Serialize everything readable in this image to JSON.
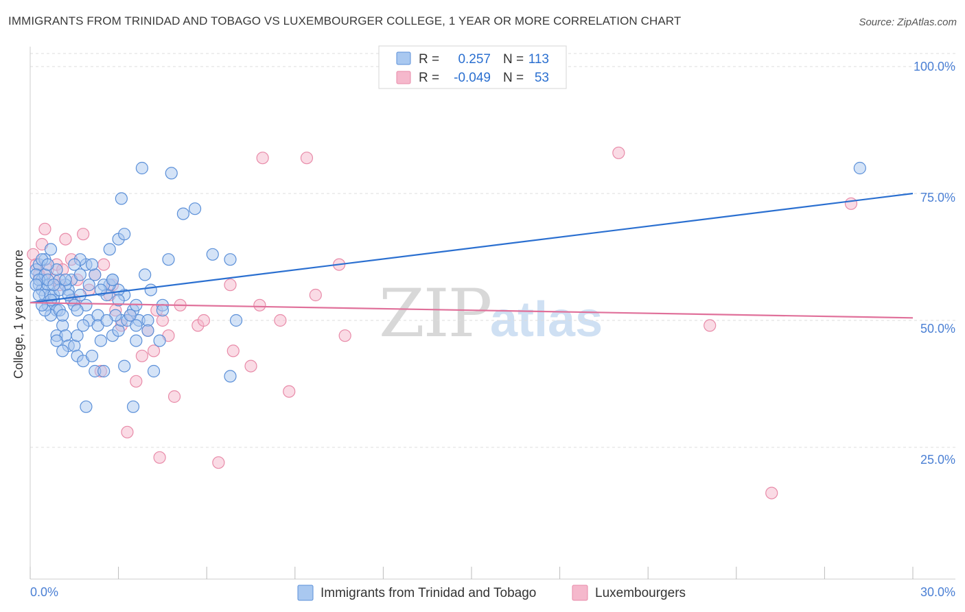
{
  "header": {
    "title": "IMMIGRANTS FROM TRINIDAD AND TOBAGO VS LUXEMBOURGER COLLEGE, 1 YEAR OR MORE CORRELATION CHART",
    "source": "Source: ZipAtlas.com"
  },
  "watermark": {
    "zip": "ZIP",
    "atlas": "atlas"
  },
  "colors": {
    "blue_fill": "#a9c8f0",
    "blue_stroke": "#5a8fd8",
    "blue_line": "#2a6fd0",
    "pink_fill": "#f5b8cc",
    "pink_stroke": "#e88aa8",
    "pink_line": "#e0709a",
    "grid": "#dddddd",
    "tick_text": "#4a7fd4"
  },
  "legend_stats": [
    {
      "r_label": "R =",
      "r_value": "0.257",
      "n_label": "N =",
      "n_value": "113"
    },
    {
      "r_label": "R =",
      "r_value": "-0.049",
      "n_label": "N =",
      "n_value": "53"
    }
  ],
  "chart_data": {
    "type": "scatter",
    "title": "IMMIGRANTS FROM TRINIDAD AND TOBAGO VS LUXEMBOURGER COLLEGE, 1 YEAR OR MORE CORRELATION CHART",
    "xlabel": "",
    "ylabel": "College, 1 year or more",
    "xlim": [
      0,
      30
    ],
    "ylim": [
      0,
      105
    ],
    "x_tick_labels": [
      "0.0%",
      "30.0%"
    ],
    "y_ticks": [
      25,
      50,
      75,
      100
    ],
    "y_tick_labels": [
      "25.0%",
      "50.0%",
      "75.0%",
      "100.0%"
    ],
    "grid": true,
    "legend_position": "bottom-center",
    "series": [
      {
        "name": "Immigrants from Trinidad and Tobago",
        "color": "blue",
        "r": 0.257,
        "n": 113,
        "trend": {
          "x": [
            0,
            30
          ],
          "y": [
            53.5,
            75
          ]
        },
        "points": [
          [
            0.2,
            60
          ],
          [
            0.3,
            61
          ],
          [
            0.2,
            59
          ],
          [
            0.4,
            58
          ],
          [
            0.3,
            57
          ],
          [
            0.5,
            59
          ],
          [
            0.4,
            56
          ],
          [
            0.6,
            57
          ],
          [
            0.7,
            55
          ],
          [
            0.5,
            55
          ],
          [
            0.8,
            54
          ],
          [
            0.6,
            53
          ],
          [
            0.9,
            52
          ],
          [
            0.7,
            51
          ],
          [
            1.0,
            52
          ],
          [
            1.1,
            49
          ],
          [
            0.9,
            47
          ],
          [
            1.2,
            47
          ],
          [
            1.3,
            45
          ],
          [
            1.1,
            44
          ],
          [
            1.5,
            45
          ],
          [
            1.6,
            43
          ],
          [
            1.8,
            42
          ],
          [
            2.1,
            43
          ],
          [
            2.2,
            40
          ],
          [
            2.5,
            40
          ],
          [
            2.8,
            47
          ],
          [
            3.0,
            48
          ],
          [
            3.1,
            50
          ],
          [
            2.9,
            51
          ],
          [
            3.3,
            50
          ],
          [
            3.5,
            52
          ],
          [
            3.6,
            53
          ],
          [
            3.2,
            55
          ],
          [
            3.0,
            56
          ],
          [
            2.7,
            57
          ],
          [
            2.5,
            57
          ],
          [
            2.8,
            58
          ],
          [
            2.2,
            59
          ],
          [
            1.9,
            61
          ],
          [
            1.7,
            62
          ],
          [
            1.5,
            61
          ],
          [
            1.4,
            58
          ],
          [
            1.3,
            56
          ],
          [
            1.2,
            57
          ],
          [
            1.0,
            58
          ],
          [
            0.9,
            60
          ],
          [
            0.7,
            64
          ],
          [
            0.5,
            62
          ],
          [
            0.3,
            58
          ],
          [
            2.7,
            64
          ],
          [
            3.0,
            66
          ],
          [
            3.2,
            67
          ],
          [
            3.1,
            74
          ],
          [
            3.8,
            80
          ],
          [
            4.8,
            79
          ],
          [
            5.2,
            71
          ],
          [
            5.6,
            72
          ],
          [
            6.2,
            63
          ],
          [
            6.8,
            62
          ],
          [
            4.7,
            62
          ],
          [
            4.5,
            53
          ],
          [
            3.9,
            59
          ],
          [
            4.1,
            56
          ],
          [
            3.7,
            50
          ],
          [
            3.4,
            51
          ],
          [
            3.6,
            49
          ],
          [
            4.0,
            50
          ],
          [
            3.2,
            41
          ],
          [
            3.5,
            33
          ],
          [
            4.2,
            40
          ],
          [
            4.4,
            46
          ],
          [
            4.5,
            52
          ],
          [
            1.9,
            33
          ],
          [
            2.6,
            55
          ],
          [
            2.4,
            56
          ],
          [
            2.0,
            50
          ],
          [
            1.8,
            49
          ],
          [
            1.6,
            47
          ],
          [
            2.3,
            51
          ],
          [
            6.8,
            39
          ],
          [
            7.0,
            50
          ],
          [
            28.2,
            80
          ],
          [
            0.4,
            62
          ],
          [
            0.6,
            61
          ],
          [
            0.8,
            55
          ],
          [
            1.0,
            56
          ],
          [
            1.4,
            54
          ],
          [
            1.9,
            53
          ],
          [
            2.0,
            57
          ],
          [
            2.3,
            49
          ],
          [
            1.7,
            59
          ],
          [
            1.5,
            53
          ],
          [
            0.2,
            57
          ],
          [
            0.3,
            55
          ],
          [
            0.6,
            58
          ],
          [
            0.7,
            54
          ],
          [
            1.1,
            51
          ],
          [
            1.3,
            55
          ],
          [
            2.1,
            61
          ],
          [
            2.6,
            50
          ],
          [
            2.8,
            58
          ],
          [
            3.0,
            54
          ],
          [
            0.5,
            52
          ],
          [
            0.9,
            46
          ],
          [
            1.6,
            52
          ],
          [
            2.4,
            46
          ],
          [
            4.0,
            48
          ],
          [
            3.6,
            46
          ],
          [
            0.8,
            57
          ],
          [
            1.2,
            58
          ],
          [
            1.7,
            55
          ],
          [
            0.4,
            53
          ]
        ]
      },
      {
        "name": "Luxembourgers",
        "color": "pink",
        "r": -0.049,
        "n": 53,
        "trend": {
          "x": [
            0,
            30
          ],
          "y": [
            53.5,
            50.5
          ]
        },
        "points": [
          [
            0.1,
            63
          ],
          [
            0.2,
            61
          ],
          [
            0.4,
            65
          ],
          [
            0.5,
            68
          ],
          [
            0.6,
            60
          ],
          [
            0.8,
            58
          ],
          [
            1.0,
            57
          ],
          [
            1.2,
            66
          ],
          [
            1.4,
            62
          ],
          [
            1.6,
            58
          ],
          [
            1.8,
            67
          ],
          [
            2.0,
            56
          ],
          [
            2.2,
            59
          ],
          [
            2.5,
            61
          ],
          [
            2.7,
            55
          ],
          [
            2.9,
            52
          ],
          [
            3.1,
            49
          ],
          [
            3.3,
            28
          ],
          [
            3.6,
            38
          ],
          [
            3.8,
            43
          ],
          [
            4.0,
            48
          ],
          [
            4.2,
            44
          ],
          [
            4.4,
            23
          ],
          [
            4.5,
            50
          ],
          [
            4.7,
            47
          ],
          [
            4.9,
            35
          ],
          [
            5.1,
            53
          ],
          [
            5.7,
            49
          ],
          [
            5.9,
            50
          ],
          [
            6.4,
            22
          ],
          [
            6.8,
            57
          ],
          [
            6.9,
            44
          ],
          [
            7.5,
            41
          ],
          [
            7.8,
            53
          ],
          [
            7.9,
            82
          ],
          [
            8.5,
            50
          ],
          [
            8.8,
            36
          ],
          [
            9.4,
            82
          ],
          [
            9.7,
            55
          ],
          [
            10.5,
            61
          ],
          [
            10.7,
            47
          ],
          [
            20.0,
            83
          ],
          [
            23.1,
            49
          ],
          [
            25.2,
            16
          ],
          [
            27.9,
            73
          ],
          [
            0.3,
            59
          ],
          [
            0.9,
            61
          ],
          [
            1.5,
            54
          ],
          [
            2.4,
            40
          ],
          [
            3.4,
            51
          ],
          [
            4.3,
            52
          ],
          [
            1.1,
            60
          ],
          [
            2.8,
            57
          ]
        ]
      }
    ]
  },
  "bottom_legend": [
    {
      "label": "Immigrants from Trinidad and Tobago"
    },
    {
      "label": "Luxembourgers"
    }
  ]
}
